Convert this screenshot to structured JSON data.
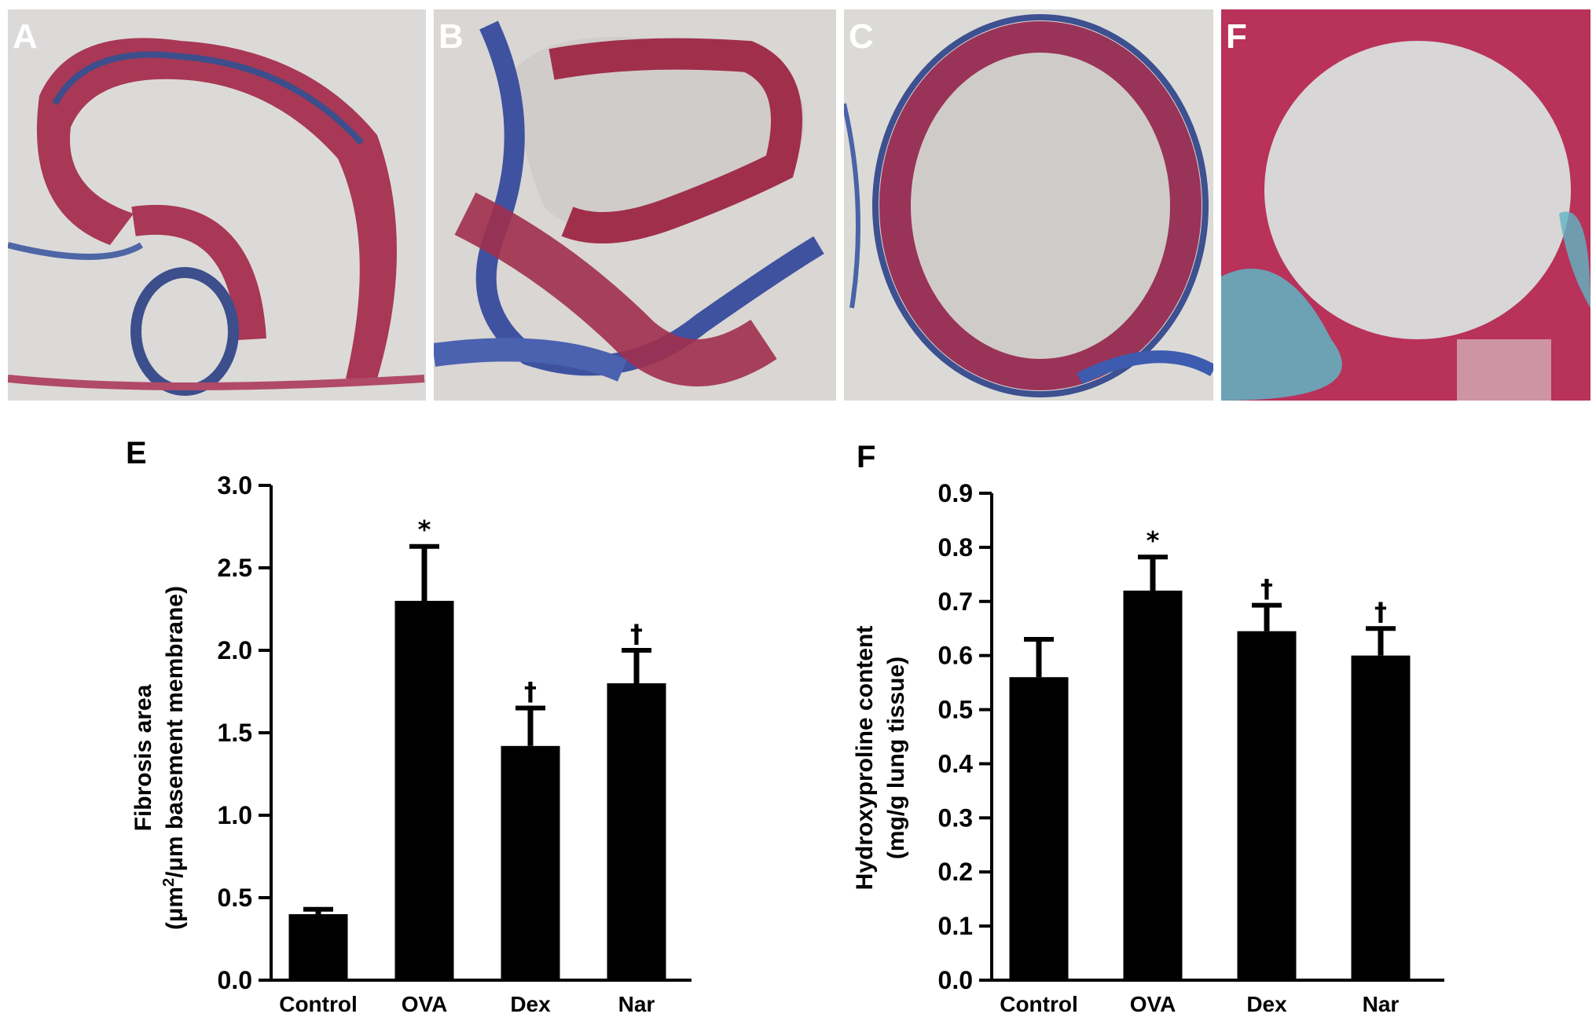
{
  "micrographs": [
    {
      "label": "A"
    },
    {
      "label": "B"
    },
    {
      "label": "C"
    },
    {
      "label": "F"
    }
  ],
  "chart_data": [
    {
      "type": "bar",
      "panel": "E",
      "categories": [
        "Control",
        "OVA",
        "Dex",
        "Nar"
      ],
      "values": [
        0.4,
        2.3,
        1.42,
        1.8
      ],
      "errors": [
        0.03,
        0.33,
        0.23,
        0.2
      ],
      "significance": [
        "",
        "*",
        "†",
        "†"
      ],
      "ylabel_line1": "Fibrosis  area",
      "ylabel_line2_pre": "(μm",
      "ylabel_line2_sup": "2",
      "ylabel_line2_post": "/μm basement membrane)",
      "ylim": [
        0,
        3.0
      ],
      "yticks": [
        0.0,
        0.5,
        1.0,
        1.5,
        2.0,
        2.5,
        3.0
      ],
      "ytick_labels": [
        "0.0",
        "0.5",
        "1.0",
        "1.5",
        "2.0",
        "2.5",
        "3.0"
      ],
      "bar_color": "#000000",
      "grid": false
    },
    {
      "type": "bar",
      "panel": "F",
      "categories": [
        "Control",
        "OVA",
        "Dex",
        "Nar"
      ],
      "values": [
        0.56,
        0.72,
        0.645,
        0.6
      ],
      "errors": [
        0.07,
        0.062,
        0.048,
        0.05
      ],
      "significance": [
        "",
        "*",
        "†",
        "†"
      ],
      "ylabel_line1": "Hydroxyproline content",
      "ylabel_line2": "(mg/g lung tissue)",
      "ylim": [
        0,
        0.9
      ],
      "yticks": [
        0.0,
        0.1,
        0.2,
        0.3,
        0.4,
        0.5,
        0.6,
        0.7,
        0.8,
        0.9
      ],
      "ytick_labels": [
        "0.0",
        "0.1",
        "0.2",
        "0.3",
        "0.4",
        "0.5",
        "0.6",
        "0.7",
        "0.8",
        "0.9"
      ],
      "bar_color": "#000000",
      "grid": false
    }
  ]
}
